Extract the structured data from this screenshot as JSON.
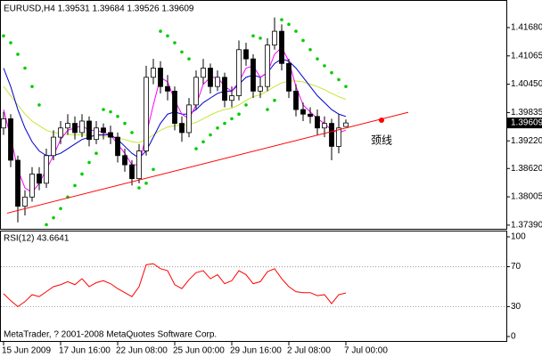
{
  "chart_data": [
    {
      "type": "candlestick",
      "title": "EURUSD,H4  1.39531 1.39684 1.39526 1.39609",
      "categories": [
        "15 Jun 2009",
        null,
        null,
        null,
        null,
        null,
        null,
        null,
        "17 Jun 16:00",
        null,
        null,
        null,
        null,
        null,
        null,
        null,
        "22 Jun 08:00",
        null,
        null,
        null,
        null,
        null,
        null,
        null,
        "25 Jun 00:00",
        null,
        null,
        null,
        null,
        null,
        null,
        null,
        "29 Jun 16:00",
        null,
        null,
        null,
        null,
        null,
        null,
        null,
        "2 Jul 08:00",
        null,
        null,
        null,
        null,
        null,
        null,
        null,
        "7 Jul 00:00"
      ],
      "candles": {
        "open": [
          1.395,
          1.397,
          1.388,
          1.378,
          1.38,
          1.385,
          1.383,
          1.389,
          1.393,
          1.395,
          1.396,
          1.394,
          1.3965,
          1.3925,
          1.395,
          1.394,
          1.393,
          1.389,
          1.387,
          1.384,
          1.39,
          1.406,
          1.408,
          1.404,
          1.403,
          1.396,
          1.394,
          1.4,
          1.406,
          1.408,
          1.404,
          1.406,
          1.401,
          1.402,
          1.412,
          1.41,
          1.403,
          1.404,
          1.413,
          1.416,
          1.409,
          1.403,
          1.399,
          1.398,
          1.3975,
          1.395,
          1.396,
          1.391,
          1.39531
        ],
        "high": [
          1.3985,
          1.398,
          1.389,
          1.3815,
          1.3865,
          1.3865,
          1.3905,
          1.3945,
          1.3965,
          1.398,
          1.3975,
          1.398,
          1.3975,
          1.3965,
          1.396,
          1.3955,
          1.394,
          1.3905,
          1.388,
          1.3915,
          1.4085,
          1.41,
          1.4095,
          1.4065,
          1.404,
          1.3975,
          1.4015,
          1.4075,
          1.41,
          1.409,
          1.4075,
          1.407,
          1.404,
          1.414,
          1.4135,
          1.411,
          1.406,
          1.4145,
          1.419,
          1.4175,
          1.41,
          1.4045,
          1.4005,
          1.3995,
          1.399,
          1.3975,
          1.397,
          1.398,
          1.39684
        ],
        "low": [
          1.3935,
          1.3865,
          1.3745,
          1.376,
          1.379,
          1.3815,
          1.382,
          1.388,
          1.3915,
          1.3935,
          1.3925,
          1.393,
          1.391,
          1.3915,
          1.3925,
          1.3915,
          1.3875,
          1.3855,
          1.3825,
          1.383,
          1.389,
          1.4045,
          1.4025,
          1.401,
          1.3945,
          1.392,
          1.393,
          1.399,
          1.4045,
          1.4025,
          1.403,
          1.3995,
          1.3995,
          1.401,
          1.4085,
          1.4015,
          1.4015,
          1.403,
          1.412,
          1.4075,
          1.4015,
          1.3975,
          1.3965,
          1.396,
          1.3935,
          1.393,
          1.388,
          1.3895,
          1.39526
        ],
        "close": [
          1.397,
          1.388,
          1.378,
          1.38,
          1.385,
          1.383,
          1.389,
          1.393,
          1.395,
          1.396,
          1.394,
          1.3965,
          1.3925,
          1.395,
          1.394,
          1.393,
          1.389,
          1.387,
          1.384,
          1.39,
          1.406,
          1.408,
          1.404,
          1.403,
          1.396,
          1.394,
          1.4,
          1.406,
          1.408,
          1.404,
          1.406,
          1.401,
          1.402,
          1.412,
          1.41,
          1.403,
          1.404,
          1.413,
          1.416,
          1.409,
          1.403,
          1.399,
          1.398,
          1.3975,
          1.395,
          1.396,
          1.391,
          1.395,
          1.39609
        ]
      },
      "overlays": [
        {
          "color": "#c8e632",
          "values": [
            1.404,
            1.402,
            1.4,
            1.398,
            1.3965,
            1.3955,
            1.3945,
            1.394,
            1.3938,
            1.3936,
            1.3935,
            1.3935,
            1.3934,
            1.3933,
            1.3932,
            1.393,
            1.3928,
            1.3925,
            1.392,
            1.3918,
            1.3925,
            1.3935,
            1.3945,
            1.3952,
            1.3955,
            1.3956,
            1.3958,
            1.3962,
            1.397,
            1.3978,
            1.3985,
            1.399,
            1.3993,
            1.4,
            1.401,
            1.4018,
            1.4022,
            1.403,
            1.404,
            1.4048,
            1.4052,
            1.4052,
            1.405,
            1.4045,
            1.404,
            1.4033,
            1.4025,
            1.4018,
            1.4012
          ]
        },
        {
          "color": "#0000cc",
          "values": [
            1.408,
            1.404,
            1.399,
            1.395,
            1.392,
            1.39,
            1.389,
            1.389,
            1.3895,
            1.3905,
            1.3915,
            1.3925,
            1.393,
            1.3935,
            1.3935,
            1.3935,
            1.3925,
            1.391,
            1.3895,
            1.3885,
            1.39,
            1.393,
            1.396,
            1.398,
            1.3985,
            1.398,
            1.398,
            1.399,
            1.4005,
            1.4015,
            1.4025,
            1.403,
            1.403,
            1.4045,
            1.406,
            1.4065,
            1.406,
            1.407,
            1.409,
            1.41,
            1.4095,
            1.408,
            1.406,
            1.404,
            1.402,
            1.4005,
            1.399,
            1.398,
            1.3975
          ]
        },
        {
          "color": "#ff00ff",
          "values": [
            1.399,
            1.393,
            1.386,
            1.382,
            1.381,
            1.383,
            1.386,
            1.389,
            1.3925,
            1.3945,
            1.395,
            1.3955,
            1.3945,
            1.3945,
            1.394,
            1.3935,
            1.3915,
            1.3895,
            1.387,
            1.387,
            1.3935,
            1.4,
            1.406,
            1.405,
            1.401,
            1.398,
            1.397,
            1.4,
            1.4045,
            1.406,
            1.406,
            1.404,
            1.403,
            1.405,
            1.408,
            1.4085,
            1.406,
            1.407,
            1.411,
            1.4125,
            1.4095,
            1.404,
            1.4,
            1.3985,
            1.397,
            1.396,
            1.3945,
            1.394,
            1.3945
          ]
        }
      ],
      "sar": {
        "color": "#00cc00",
        "values": [
          1.415,
          1.4135,
          1.411,
          1.408,
          1.404,
          1.4,
          1.374,
          1.3755,
          1.3775,
          1.38,
          1.3825,
          1.385,
          1.3875,
          1.3895,
          1.399,
          1.3985,
          1.3975,
          1.396,
          1.394,
          1.382,
          1.383,
          1.386,
          1.416,
          1.415,
          1.4135,
          1.4115,
          1.41,
          1.3905,
          1.392,
          1.3935,
          1.395,
          1.396,
          1.397,
          1.398,
          1.4,
          1.415,
          1.4145,
          1.399,
          1.401,
          1.4185,
          1.4175,
          1.416,
          1.414,
          1.412,
          1.41,
          1.4085,
          1.407,
          1.4055,
          1.404
        ]
      },
      "trendline": {
        "color": "#ff0000",
        "x": [
          0.5,
          56.75
        ],
        "y": [
          1.3765,
          1.3984
        ],
        "point": [
          53,
          1.3967
        ]
      },
      "annotation": {
        "text": "颈线",
        "x": 53,
        "y": 1.3922,
        "color": "#ff00ff"
      },
      "last_price": 1.39609,
      "xlim": [
        -0.5,
        70.5
      ],
      "ylim": [
        1.3733,
        1.4224
      ],
      "yticks": [
        {
          "value": 1.4168,
          "label": "1.41680"
        },
        {
          "value": 1.41065,
          "label": "1.41065"
        },
        {
          "value": 1.4045,
          "label": "1.40450"
        },
        1.39835,
        {
          "value": 1.3922,
          "label": "1.39220"
        },
        {
          "value": 1.3862,
          "label": "1.38620"
        },
        1.38005,
        {
          "value": 1.3739,
          "label": "1.37390"
        }
      ],
      "grid": false
    },
    {
      "type": "line",
      "title": "RSI(12) 43.6641",
      "color": "#ff0000",
      "values": [
        43,
        36,
        30,
        35,
        42,
        40,
        45,
        50,
        52,
        55,
        52,
        58,
        50,
        54,
        56,
        53,
        48,
        44,
        40,
        50,
        72,
        73,
        68,
        66,
        52,
        48,
        57,
        64,
        66,
        58,
        62,
        53,
        56,
        66,
        62,
        53,
        55,
        65,
        68,
        58,
        50,
        45,
        44,
        44,
        41,
        42,
        33,
        42,
        43.6641
      ],
      "ylim": [
        0,
        100
      ],
      "yticks": [
        100,
        70,
        30,
        0
      ],
      "levels": [
        70,
        30
      ]
    }
  ],
  "footer": "MetaTrader, ? 2001-2008 MetaQuotes Software Corp."
}
